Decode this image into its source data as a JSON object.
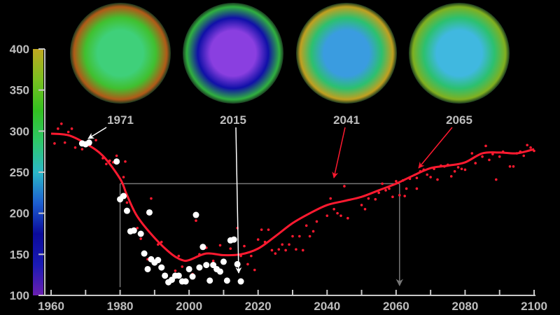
{
  "chart_data": {
    "type": "scatter",
    "title": "",
    "xlabel": "",
    "ylabel": "",
    "xlim": [
      1955,
      2100
    ],
    "ylim": [
      100,
      400
    ],
    "x_ticks": [
      1960,
      1980,
      2000,
      2020,
      2040,
      2060,
      2080,
      2100
    ],
    "y_ticks": [
      100,
      150,
      200,
      250,
      300,
      350,
      400
    ],
    "grid": false,
    "colorbar": {
      "range": [
        100,
        400
      ],
      "colors": [
        "#6a1fb0",
        "#1a1ab4",
        "#0a0a9a",
        "#1d5fd0",
        "#2bb8c8",
        "#2ec86a",
        "#32c020",
        "#7ac020",
        "#c0a820"
      ]
    },
    "globe_labels": [
      "1971",
      "2015",
      "2041",
      "2065"
    ],
    "globe_colors": {
      "1971": [
        "#3fd07a",
        "#40c030",
        "#b05a18"
      ],
      "2015": [
        "#8a3fe0",
        "#1010a8",
        "#30b040"
      ],
      "2041": [
        "#3a9ce0",
        "#2cc070",
        "#c0a020"
      ],
      "2065": [
        "#40b8e0",
        "#2cc070",
        "#80b020"
      ]
    },
    "colors": {
      "model": "#ff1a30",
      "observed": "#ffffff",
      "reference": "#777777",
      "axis": "#c8c8c8"
    },
    "reference_value": 236,
    "reference_years": [
      1980,
      2061
    ],
    "smooth_line": {
      "x": [
        1960,
        1965,
        1970,
        1975,
        1980,
        1982,
        1985,
        1990,
        1995,
        1998,
        2000,
        2005,
        2010,
        2015,
        2020,
        2025,
        2030,
        2035,
        2040,
        2045,
        2050,
        2055,
        2060,
        2065,
        2070,
        2075,
        2080,
        2085,
        2090,
        2095,
        2100
      ],
      "y": [
        297,
        295,
        285,
        270,
        242,
        222,
        196,
        170,
        150,
        143,
        143,
        151,
        149,
        150,
        157,
        172,
        188,
        200,
        210,
        215,
        220,
        228,
        236,
        246,
        255,
        258,
        262,
        273,
        274,
        273,
        278
      ]
    },
    "observed": {
      "x": [
        1969,
        1970,
        1971,
        1979,
        1980,
        1981,
        1982,
        1983,
        1984,
        1986,
        1987,
        1988,
        1988.5,
        1989,
        1990,
        1991,
        1992,
        1993,
        1994,
        1995,
        1996,
        1997,
        1998,
        1999,
        2000,
        2001,
        2002,
        2003,
        2004,
        2005,
        2006,
        2007,
        2008,
        2009,
        2010,
        2011,
        2012,
        2013,
        2014,
        2015
      ],
      "y": [
        285,
        284,
        286,
        263,
        217,
        221,
        203,
        178,
        179,
        175,
        151,
        132,
        201,
        144,
        140,
        143,
        134,
        124,
        116,
        119,
        124,
        124,
        117,
        117,
        132,
        123,
        198,
        134,
        159,
        137,
        118,
        137,
        132,
        129,
        141,
        118,
        167,
        168,
        138,
        117
      ]
    },
    "model_points": {
      "x": [
        1961,
        1962,
        1963,
        1964,
        1965,
        1966,
        1967,
        1969,
        1973,
        1975,
        1976,
        1977,
        1978,
        1979,
        1981,
        1981.5,
        1982,
        1985,
        1986,
        1988,
        1988,
        1989,
        1991,
        1992,
        1996,
        1997,
        1998,
        2000,
        2001,
        2002,
        2003,
        2005,
        2007,
        2009,
        2010,
        2012,
        2014,
        2015,
        2016,
        2017,
        2018,
        2019,
        2020,
        2021,
        2022,
        2023,
        2024,
        2025,
        2026,
        2027,
        2028,
        2029,
        2030,
        2031,
        2032,
        2033,
        2034,
        2035,
        2036,
        2037,
        2040,
        2041,
        2042,
        2043,
        2044,
        2045,
        2046,
        2050,
        2051,
        2052,
        2054,
        2055,
        2056,
        2057,
        2058,
        2059,
        2060,
        2061,
        2062,
        2062.5,
        2063,
        2064,
        2066,
        2066,
        2067,
        2068,
        2069,
        2070,
        2071,
        2072,
        2073,
        2074,
        2075,
        2076,
        2077,
        2078,
        2079,
        2080,
        2082,
        2083,
        2085,
        2086,
        2087,
        2088,
        2089,
        2090,
        2091,
        2093,
        2094,
        2095,
        2096,
        2097,
        2098,
        2099,
        2100
      ],
      "y": [
        285,
        303,
        309,
        286,
        299,
        303,
        280,
        278,
        289,
        267,
        260,
        264,
        262,
        270,
        244,
        263,
        213,
        182,
        169,
        200,
        144,
        218,
        162,
        165,
        130,
        148,
        135,
        133,
        126,
        191,
        150,
        158,
        142,
        161,
        140,
        157,
        182,
        148,
        160,
        138,
        148,
        131,
        168,
        180,
        165,
        180,
        155,
        151,
        156,
        162,
        155,
        162,
        172,
        156,
        172,
        155,
        185,
        172,
        178,
        190,
        197,
        218,
        205,
        200,
        197,
        233,
        194,
        210,
        205,
        218,
        217,
        225,
        236,
        228,
        230,
        220,
        239,
        222,
        240,
        221,
        230,
        242,
        243,
        230,
        251,
        253,
        247,
        244,
        254,
        241,
        258,
        257,
        259,
        245,
        251,
        256,
        254,
        253,
        273,
        261,
        269,
        282,
        265,
        272,
        241,
        269,
        275,
        257,
        257,
        273,
        275,
        270,
        283,
        280,
        276
      ]
    }
  }
}
